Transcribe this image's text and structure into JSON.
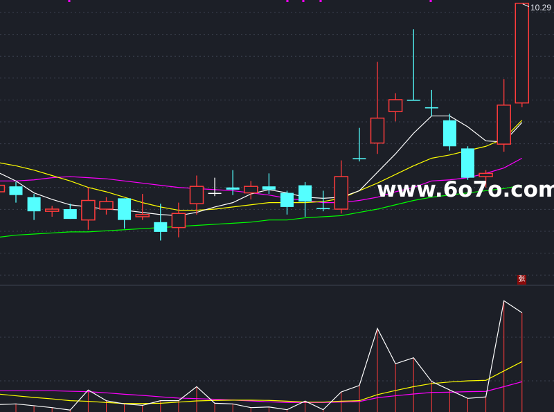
{
  "chart_data": [
    {
      "type": "candlestick",
      "panel": "price",
      "ylim": [
        7.7,
        10.32
      ],
      "grid": true,
      "colors": {
        "up": "#ff3b3b",
        "down": "#54ffff",
        "flat": "#ffffff",
        "ma5": "#ffffff",
        "ma10": "#ffff00",
        "ma20": "#ff00ff",
        "ma60": "#00ff00"
      },
      "candles": [
        {
          "o": 8.55,
          "h": 8.62,
          "l": 8.55,
          "c": 8.61
        },
        {
          "o": 8.6,
          "h": 8.64,
          "l": 8.45,
          "c": 8.52
        },
        {
          "o": 8.5,
          "h": 8.53,
          "l": 8.29,
          "c": 8.37
        },
        {
          "o": 8.37,
          "h": 8.42,
          "l": 8.32,
          "c": 8.39
        },
        {
          "o": 8.39,
          "h": 8.44,
          "l": 8.3,
          "c": 8.3
        },
        {
          "o": 8.29,
          "h": 8.59,
          "l": 8.2,
          "c": 8.47
        },
        {
          "o": 8.39,
          "h": 8.5,
          "l": 8.34,
          "c": 8.46
        },
        {
          "o": 8.49,
          "h": 8.49,
          "l": 8.21,
          "c": 8.29
        },
        {
          "o": 8.32,
          "h": 8.53,
          "l": 8.29,
          "c": 8.34
        },
        {
          "o": 8.27,
          "h": 8.44,
          "l": 8.1,
          "c": 8.18
        },
        {
          "o": 8.22,
          "h": 8.45,
          "l": 8.13,
          "c": 8.35
        },
        {
          "o": 8.44,
          "h": 8.7,
          "l": 8.34,
          "c": 8.6
        },
        {
          "o": 8.54,
          "h": 8.68,
          "l": 8.51,
          "c": 8.54
        },
        {
          "o": 8.59,
          "h": 8.75,
          "l": 8.52,
          "c": 8.57
        },
        {
          "o": 8.54,
          "h": 8.65,
          "l": 8.48,
          "c": 8.6
        },
        {
          "o": 8.6,
          "h": 8.72,
          "l": 8.53,
          "c": 8.57
        },
        {
          "o": 8.54,
          "h": 8.56,
          "l": 8.34,
          "c": 8.41
        },
        {
          "o": 8.61,
          "h": 8.64,
          "l": 8.32,
          "c": 8.46
        },
        {
          "o": 8.4,
          "h": 8.56,
          "l": 8.37,
          "c": 8.39
        },
        {
          "o": 8.39,
          "h": 8.84,
          "l": 8.35,
          "c": 8.69
        },
        {
          "o": 8.86,
          "h": 9.14,
          "l": 8.83,
          "c": 8.85
        },
        {
          "o": 9.0,
          "h": 9.75,
          "l": 8.9,
          "c": 9.23
        },
        {
          "o": 9.29,
          "h": 9.46,
          "l": 9.2,
          "c": 9.4
        },
        {
          "o": 9.4,
          "h": 10.05,
          "l": 9.39,
          "c": 9.39
        },
        {
          "o": 9.33,
          "h": 9.49,
          "l": 9.25,
          "c": 9.32
        },
        {
          "o": 9.21,
          "h": 9.27,
          "l": 8.93,
          "c": 8.97
        },
        {
          "o": 8.95,
          "h": 8.97,
          "l": 8.66,
          "c": 8.68
        },
        {
          "o": 8.69,
          "h": 8.75,
          "l": 8.59,
          "c": 8.72
        },
        {
          "o": 8.99,
          "h": 9.59,
          "l": 8.92,
          "c": 9.35
        },
        {
          "o": 9.37,
          "h": 10.29,
          "l": 9.33,
          "c": 10.29
        }
      ],
      "ma5": [
        8.73,
        8.65,
        8.54,
        8.48,
        8.43,
        8.41,
        8.39,
        8.38,
        8.36,
        8.34,
        8.33,
        8.36,
        8.41,
        8.45,
        8.53,
        8.57,
        8.54,
        8.5,
        8.49,
        8.5,
        8.56,
        8.73,
        8.9,
        9.09,
        9.25,
        9.25,
        9.15,
        9.02,
        9.01,
        9.19
      ],
      "ma10": [
        8.82,
        8.79,
        8.75,
        8.7,
        8.65,
        8.59,
        8.55,
        8.5,
        8.45,
        8.41,
        8.38,
        8.38,
        8.39,
        8.41,
        8.43,
        8.45,
        8.45,
        8.45,
        8.46,
        8.49,
        8.56,
        8.63,
        8.71,
        8.79,
        8.86,
        8.89,
        8.93,
        8.97,
        9.04,
        9.21
      ],
      "ma20": [
        8.65,
        8.65,
        8.66,
        8.68,
        8.69,
        8.68,
        8.67,
        8.65,
        8.63,
        8.61,
        8.59,
        8.58,
        8.57,
        8.56,
        8.54,
        8.52,
        8.49,
        8.47,
        8.45,
        8.45,
        8.47,
        8.5,
        8.55,
        8.59,
        8.65,
        8.66,
        8.68,
        8.72,
        8.77,
        8.86
      ],
      "ma60": [
        8.13,
        8.15,
        8.16,
        8.17,
        8.18,
        8.18,
        8.19,
        8.2,
        8.21,
        8.22,
        8.23,
        8.24,
        8.25,
        8.26,
        8.27,
        8.29,
        8.29,
        8.31,
        8.32,
        8.33,
        8.36,
        8.39,
        8.43,
        8.47,
        8.5,
        8.52,
        8.54,
        8.56,
        8.58,
        8.61
      ],
      "annotations": {
        "high_label": "10.29"
      }
    },
    {
      "type": "bar",
      "panel": "volume",
      "ylim": [
        0,
        100
      ],
      "grid": true,
      "colors": {
        "bar": "#ff3b3b",
        "line": "#ffffff",
        "ma_a": "#ffff00",
        "ma_b": "#ff00ff"
      },
      "values": [
        7.4,
        7.9,
        6.5,
        5.0,
        3.1,
        18.7,
        10.4,
        7.9,
        6.8,
        10.4,
        10.4,
        21.3,
        8.4,
        7.9,
        5.0,
        5.5,
        3.4,
        10.1,
        3.4,
        17.2,
        22.2,
        66.5,
        39.1,
        43.7,
        25.3,
        18.7,
        12.2,
        13.3,
        88.0,
        78.7
      ],
      "ma_a": [
        15.6,
        14.2,
        12.9,
        11.8,
        10.4,
        9.9,
        9.0,
        8.2,
        8.2,
        8.4,
        9.3,
        10.2,
        10.6,
        10.8,
        10.8,
        10.6,
        10.0,
        9.3,
        9.3,
        10.0,
        10.4,
        15.1,
        18.3,
        21.3,
        23.7,
        24.9,
        25.8,
        26.2,
        33.5,
        40.7
      ],
      "ma_b": [
        18.1,
        18.1,
        18.1,
        18.1,
        17.7,
        17.4,
        16.5,
        15.4,
        14.5,
        13.4,
        12.4,
        12.0,
        11.5,
        10.9,
        10.2,
        9.5,
        9.0,
        9.0,
        9.0,
        9.3,
        9.7,
        12.7,
        14.2,
        15.6,
        16.8,
        17.0,
        17.4,
        17.6,
        21.3,
        25.1
      ]
    }
  ],
  "watermark": "www.6o7o.com",
  "badge": "张",
  "marker_color": "#ff00ff"
}
